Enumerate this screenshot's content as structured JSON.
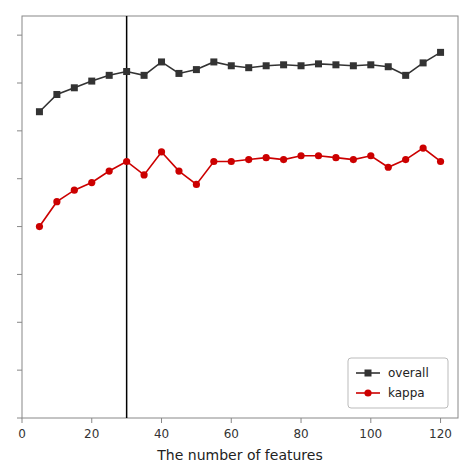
{
  "chart_data": {
    "type": "line",
    "x_label": "The number of features",
    "x": [
      5,
      10,
      15,
      20,
      25,
      30,
      35,
      40,
      45,
      50,
      55,
      60,
      65,
      70,
      75,
      80,
      85,
      90,
      95,
      100,
      105,
      110,
      115,
      120
    ],
    "series": [
      {
        "name": "overall",
        "color": "#333333",
        "marker": "square",
        "values": [
          0.82,
          0.838,
          0.845,
          0.852,
          0.858,
          0.862,
          0.858,
          0.872,
          0.86,
          0.864,
          0.872,
          0.868,
          0.866,
          0.868,
          0.869,
          0.868,
          0.87,
          0.869,
          0.868,
          0.869,
          0.867,
          0.858,
          0.871,
          0.882
        ]
      },
      {
        "name": "kappa",
        "color": "#cc0000",
        "marker": "circle",
        "values": [
          0.7,
          0.726,
          0.738,
          0.746,
          0.758,
          0.768,
          0.754,
          0.778,
          0.758,
          0.744,
          0.768,
          0.768,
          0.77,
          0.772,
          0.77,
          0.774,
          0.774,
          0.772,
          0.77,
          0.774,
          0.762,
          0.77,
          0.782,
          0.768
        ]
      }
    ],
    "vlines": [
      30
    ],
    "xlim": [
      0,
      125
    ],
    "ylim": [
      0.5,
      0.92
    ],
    "xticks": [
      0,
      20,
      40,
      60,
      80,
      100,
      120
    ],
    "yticks": [
      0.5,
      0.55,
      0.6,
      0.65,
      0.7,
      0.75,
      0.8,
      0.85,
      0.9
    ],
    "tick_labels": "x",
    "grid": false,
    "legend": "lower right"
  }
}
